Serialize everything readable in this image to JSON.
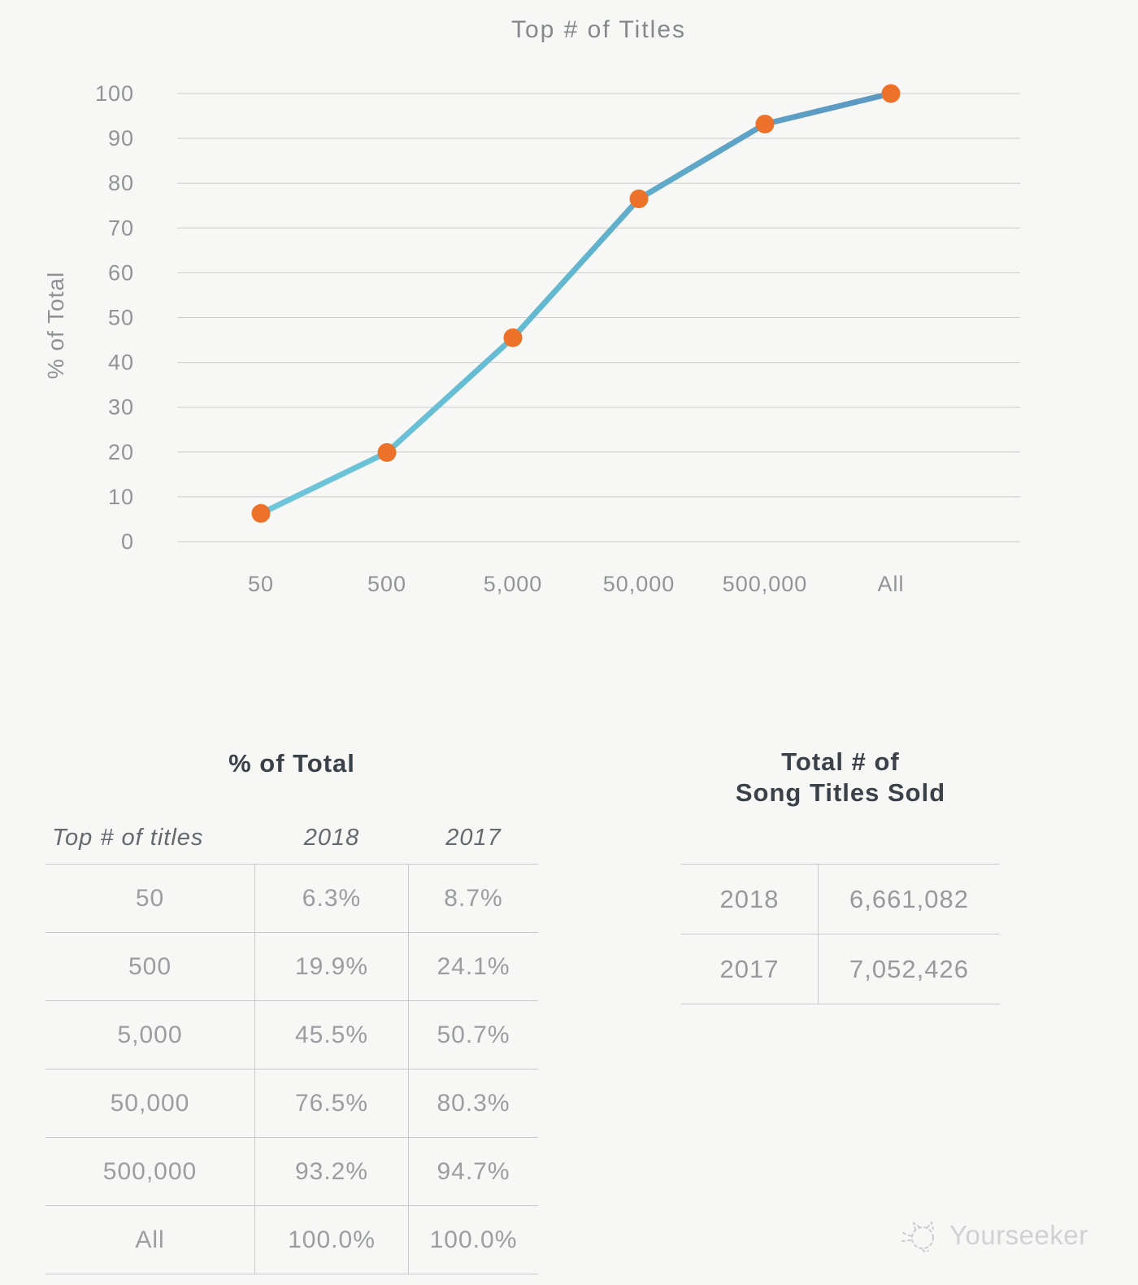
{
  "chart_data": {
    "type": "line",
    "title": "Top # of Titles",
    "ylabel": "% of Total",
    "xlabel": "",
    "categories": [
      "50",
      "500",
      "5,000",
      "50,000",
      "500,000",
      "All"
    ],
    "series": [
      {
        "name": "2018",
        "values": [
          6.3,
          19.9,
          45.5,
          76.5,
          93.2,
          100.0
        ]
      }
    ],
    "ylim": [
      0,
      100
    ],
    "ytick_step": 10,
    "grid": true,
    "legend": "none"
  },
  "percent_table": {
    "title": "% of Total",
    "columns": [
      "Top # of titles",
      "2018",
      "2017"
    ],
    "rows": [
      {
        "label": "50",
        "v2018": "6.3%",
        "v2017": "8.7%"
      },
      {
        "label": "500",
        "v2018": "19.9%",
        "v2017": "24.1%"
      },
      {
        "label": "5,000",
        "v2018": "45.5%",
        "v2017": "50.7%"
      },
      {
        "label": "50,000",
        "v2018": "76.5%",
        "v2017": "80.3%"
      },
      {
        "label": "500,000",
        "v2018": "93.2%",
        "v2017": "94.7%"
      },
      {
        "label": "All",
        "v2018": "100.0%",
        "v2017": "100.0%"
      }
    ]
  },
  "totals_table": {
    "title_line1": "Total # of",
    "title_line2": "Song Titles Sold",
    "rows": [
      {
        "label": "2018",
        "value": "6,661,082"
      },
      {
        "label": "2017",
        "value": "7,052,426"
      }
    ]
  },
  "watermark": {
    "label": "Yourseeker"
  },
  "colors": {
    "background": "#f7f7f6",
    "grid": "#cccccc",
    "line_start": "#6fc6da",
    "line_mid": "#62b8cf",
    "line_end": "#5b97c2",
    "marker": "#ec7229"
  }
}
